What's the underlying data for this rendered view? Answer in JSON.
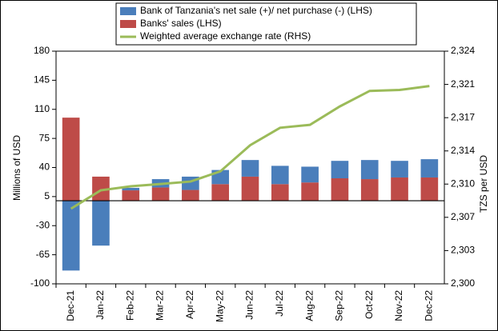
{
  "chart_data": {
    "type": "bar-line",
    "categories": [
      "Dec-21",
      "Jan-22",
      "Feb-22",
      "Mar-22",
      "Apr-22",
      "May-22",
      "Jun-22",
      "Jul-22",
      "Aug-22",
      "Sep-22",
      "Oct-22",
      "Nov-22",
      "Dec-22"
    ],
    "series": [
      {
        "name": "Bank of Tanzania's net sale (+)/ net purchase (-) (LHS)",
        "color": "#4a7ebb",
        "type": "bar",
        "values": [
          -84,
          -54,
          3,
          10,
          16,
          17,
          20,
          22,
          19,
          21,
          23,
          20,
          22
        ]
      },
      {
        "name": "Banks' sales (LHS)",
        "color": "#be4b48",
        "type": "bar",
        "values": [
          100,
          29,
          12.5,
          16,
          13,
          20,
          29,
          20,
          22,
          27,
          26,
          28,
          28
        ]
      },
      {
        "name": "Weighted average exchange rate (RHS)",
        "color": "#9bbb59",
        "type": "line",
        "axis": "y2",
        "values": [
          2307.75,
          2309.65,
          2310.06,
          2310.3,
          2310.55,
          2311.6,
          2314.3,
          2316.1,
          2316.4,
          2318.3,
          2319.9,
          2320.0,
          2320.4
        ]
      }
    ],
    "ylabel": "Millions of USD",
    "y2label": "TZS per USD",
    "ylim": [
      -100,
      180
    ],
    "yticks": [
      -100,
      -65,
      -30,
      5,
      40,
      75,
      110,
      145,
      180
    ],
    "y2lim": [
      2300,
      2324
    ],
    "y2ticks": [
      {
        "value": 2300,
        "label": "2,300"
      },
      {
        "value": 2303.43,
        "label": "2,303"
      },
      {
        "value": 2306.86,
        "label": "2,307"
      },
      {
        "value": 2310.29,
        "label": "2,310"
      },
      {
        "value": 2313.71,
        "label": "2,314"
      },
      {
        "value": 2317.14,
        "label": "2,317"
      },
      {
        "value": 2320.57,
        "label": "2,321"
      },
      {
        "value": 2324,
        "label": "2,324"
      }
    ],
    "grid": false,
    "legend": "top"
  }
}
